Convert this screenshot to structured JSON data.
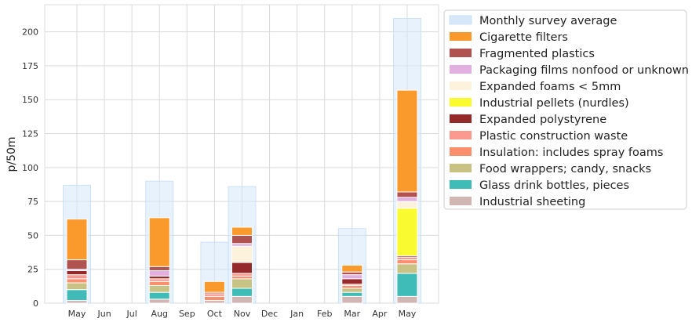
{
  "chart_data": {
    "type": "bar",
    "title": "",
    "xlabel": "",
    "ylabel": "p/50m",
    "ylim": [
      0,
      220
    ],
    "yticks": [
      0,
      25,
      50,
      75,
      100,
      125,
      150,
      175,
      200
    ],
    "grid": true,
    "legend_placement": "outside right",
    "categories": [
      "May",
      "Jun",
      "Jul",
      "Aug",
      "Sep",
      "Oct",
      "Nov",
      "Dec",
      "Jan",
      "Feb",
      "Mar",
      "Apr",
      "May"
    ],
    "average": {
      "name": "Monthly survey average",
      "color": "#d6e8fa",
      "values": [
        87,
        0,
        0,
        90,
        0,
        45,
        86,
        0,
        0,
        0,
        55,
        0,
        210
      ]
    },
    "series": [
      {
        "name": "Industrial sheeting",
        "color": "#d2b6b4",
        "values": [
          2,
          0,
          0,
          3,
          0,
          2,
          5,
          0,
          0,
          0,
          5,
          0,
          5
        ]
      },
      {
        "name": "Glass drink bottles, pieces",
        "color": "#40bcb8",
        "values": [
          8,
          0,
          0,
          5,
          0,
          0,
          6,
          0,
          0,
          0,
          3,
          0,
          17
        ]
      },
      {
        "name": "Food wrappers; candy, snacks",
        "color": "#c8c284",
        "values": [
          5,
          0,
          0,
          5,
          0,
          0,
          7,
          0,
          0,
          0,
          3,
          0,
          7
        ]
      },
      {
        "name": "Insulation: includes spray foams",
        "color": "#fb8e6c",
        "values": [
          3,
          0,
          0,
          3,
          0,
          3,
          2,
          0,
          0,
          0,
          2,
          0,
          3
        ]
      },
      {
        "name": "Plastic construction waste",
        "color": "#fa9a8e",
        "values": [
          3,
          0,
          0,
          2,
          0,
          2,
          2,
          0,
          0,
          0,
          1,
          0,
          2
        ]
      },
      {
        "name": "Expanded polystyrene",
        "color": "#952a2a",
        "values": [
          3,
          0,
          0,
          2,
          0,
          1,
          8,
          0,
          0,
          0,
          4,
          0,
          1
        ]
      },
      {
        "name": "Industrial pellets (nurdles)",
        "color": "#fafa30",
        "values": [
          0,
          0,
          0,
          0,
          0,
          0,
          0,
          0,
          0,
          0,
          0,
          0,
          35
        ]
      },
      {
        "name": "Expanded foams < 5mm",
        "color": "#fdf3dc",
        "values": [
          0,
          0,
          0,
          0,
          0,
          0,
          12,
          0,
          0,
          0,
          0,
          0,
          5
        ]
      },
      {
        "name": "Packaging films nonfood or unknown",
        "color": "#e2b0e0",
        "values": [
          1,
          0,
          0,
          4,
          0,
          0,
          2,
          0,
          0,
          0,
          3,
          0,
          3
        ]
      },
      {
        "name": "Fragmented plastics",
        "color": "#b0524f",
        "values": [
          7,
          0,
          0,
          3,
          0,
          0,
          6,
          0,
          0,
          0,
          2,
          0,
          4
        ]
      },
      {
        "name": "Cigarette filters",
        "color": "#fa9a2c",
        "values": [
          30,
          0,
          0,
          36,
          0,
          8,
          6,
          0,
          0,
          0,
          5,
          0,
          75
        ]
      }
    ]
  }
}
